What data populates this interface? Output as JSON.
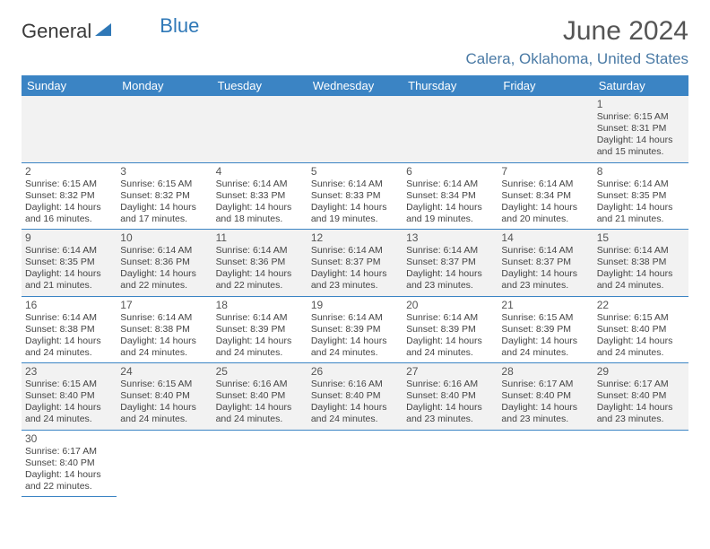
{
  "brand": {
    "name1": "General",
    "name2": "Blue"
  },
  "title": "June 2024",
  "location": "Calera, Oklahoma, United States",
  "weekdays": [
    "Sunday",
    "Monday",
    "Tuesday",
    "Wednesday",
    "Thursday",
    "Friday",
    "Saturday"
  ],
  "colors": {
    "header_bg": "#3b84c4",
    "brand_blue": "#2f78b7",
    "location": "#4a7aa5"
  },
  "weeks": [
    [
      null,
      null,
      null,
      null,
      null,
      null,
      {
        "n": "1",
        "sr": "Sunrise: 6:15 AM",
        "ss": "Sunset: 8:31 PM",
        "d1": "Daylight: 14 hours",
        "d2": "and 15 minutes."
      }
    ],
    [
      {
        "n": "2",
        "sr": "Sunrise: 6:15 AM",
        "ss": "Sunset: 8:32 PM",
        "d1": "Daylight: 14 hours",
        "d2": "and 16 minutes."
      },
      {
        "n": "3",
        "sr": "Sunrise: 6:15 AM",
        "ss": "Sunset: 8:32 PM",
        "d1": "Daylight: 14 hours",
        "d2": "and 17 minutes."
      },
      {
        "n": "4",
        "sr": "Sunrise: 6:14 AM",
        "ss": "Sunset: 8:33 PM",
        "d1": "Daylight: 14 hours",
        "d2": "and 18 minutes."
      },
      {
        "n": "5",
        "sr": "Sunrise: 6:14 AM",
        "ss": "Sunset: 8:33 PM",
        "d1": "Daylight: 14 hours",
        "d2": "and 19 minutes."
      },
      {
        "n": "6",
        "sr": "Sunrise: 6:14 AM",
        "ss": "Sunset: 8:34 PM",
        "d1": "Daylight: 14 hours",
        "d2": "and 19 minutes."
      },
      {
        "n": "7",
        "sr": "Sunrise: 6:14 AM",
        "ss": "Sunset: 8:34 PM",
        "d1": "Daylight: 14 hours",
        "d2": "and 20 minutes."
      },
      {
        "n": "8",
        "sr": "Sunrise: 6:14 AM",
        "ss": "Sunset: 8:35 PM",
        "d1": "Daylight: 14 hours",
        "d2": "and 21 minutes."
      }
    ],
    [
      {
        "n": "9",
        "sr": "Sunrise: 6:14 AM",
        "ss": "Sunset: 8:35 PM",
        "d1": "Daylight: 14 hours",
        "d2": "and 21 minutes."
      },
      {
        "n": "10",
        "sr": "Sunrise: 6:14 AM",
        "ss": "Sunset: 8:36 PM",
        "d1": "Daylight: 14 hours",
        "d2": "and 22 minutes."
      },
      {
        "n": "11",
        "sr": "Sunrise: 6:14 AM",
        "ss": "Sunset: 8:36 PM",
        "d1": "Daylight: 14 hours",
        "d2": "and 22 minutes."
      },
      {
        "n": "12",
        "sr": "Sunrise: 6:14 AM",
        "ss": "Sunset: 8:37 PM",
        "d1": "Daylight: 14 hours",
        "d2": "and 23 minutes."
      },
      {
        "n": "13",
        "sr": "Sunrise: 6:14 AM",
        "ss": "Sunset: 8:37 PM",
        "d1": "Daylight: 14 hours",
        "d2": "and 23 minutes."
      },
      {
        "n": "14",
        "sr": "Sunrise: 6:14 AM",
        "ss": "Sunset: 8:37 PM",
        "d1": "Daylight: 14 hours",
        "d2": "and 23 minutes."
      },
      {
        "n": "15",
        "sr": "Sunrise: 6:14 AM",
        "ss": "Sunset: 8:38 PM",
        "d1": "Daylight: 14 hours",
        "d2": "and 24 minutes."
      }
    ],
    [
      {
        "n": "16",
        "sr": "Sunrise: 6:14 AM",
        "ss": "Sunset: 8:38 PM",
        "d1": "Daylight: 14 hours",
        "d2": "and 24 minutes."
      },
      {
        "n": "17",
        "sr": "Sunrise: 6:14 AM",
        "ss": "Sunset: 8:38 PM",
        "d1": "Daylight: 14 hours",
        "d2": "and 24 minutes."
      },
      {
        "n": "18",
        "sr": "Sunrise: 6:14 AM",
        "ss": "Sunset: 8:39 PM",
        "d1": "Daylight: 14 hours",
        "d2": "and 24 minutes."
      },
      {
        "n": "19",
        "sr": "Sunrise: 6:14 AM",
        "ss": "Sunset: 8:39 PM",
        "d1": "Daylight: 14 hours",
        "d2": "and 24 minutes."
      },
      {
        "n": "20",
        "sr": "Sunrise: 6:14 AM",
        "ss": "Sunset: 8:39 PM",
        "d1": "Daylight: 14 hours",
        "d2": "and 24 minutes."
      },
      {
        "n": "21",
        "sr": "Sunrise: 6:15 AM",
        "ss": "Sunset: 8:39 PM",
        "d1": "Daylight: 14 hours",
        "d2": "and 24 minutes."
      },
      {
        "n": "22",
        "sr": "Sunrise: 6:15 AM",
        "ss": "Sunset: 8:40 PM",
        "d1": "Daylight: 14 hours",
        "d2": "and 24 minutes."
      }
    ],
    [
      {
        "n": "23",
        "sr": "Sunrise: 6:15 AM",
        "ss": "Sunset: 8:40 PM",
        "d1": "Daylight: 14 hours",
        "d2": "and 24 minutes."
      },
      {
        "n": "24",
        "sr": "Sunrise: 6:15 AM",
        "ss": "Sunset: 8:40 PM",
        "d1": "Daylight: 14 hours",
        "d2": "and 24 minutes."
      },
      {
        "n": "25",
        "sr": "Sunrise: 6:16 AM",
        "ss": "Sunset: 8:40 PM",
        "d1": "Daylight: 14 hours",
        "d2": "and 24 minutes."
      },
      {
        "n": "26",
        "sr": "Sunrise: 6:16 AM",
        "ss": "Sunset: 8:40 PM",
        "d1": "Daylight: 14 hours",
        "d2": "and 24 minutes."
      },
      {
        "n": "27",
        "sr": "Sunrise: 6:16 AM",
        "ss": "Sunset: 8:40 PM",
        "d1": "Daylight: 14 hours",
        "d2": "and 23 minutes."
      },
      {
        "n": "28",
        "sr": "Sunrise: 6:17 AM",
        "ss": "Sunset: 8:40 PM",
        "d1": "Daylight: 14 hours",
        "d2": "and 23 minutes."
      },
      {
        "n": "29",
        "sr": "Sunrise: 6:17 AM",
        "ss": "Sunset: 8:40 PM",
        "d1": "Daylight: 14 hours",
        "d2": "and 23 minutes."
      }
    ],
    [
      {
        "n": "30",
        "sr": "Sunrise: 6:17 AM",
        "ss": "Sunset: 8:40 PM",
        "d1": "Daylight: 14 hours",
        "d2": "and 22 minutes."
      },
      null,
      null,
      null,
      null,
      null,
      null
    ]
  ]
}
